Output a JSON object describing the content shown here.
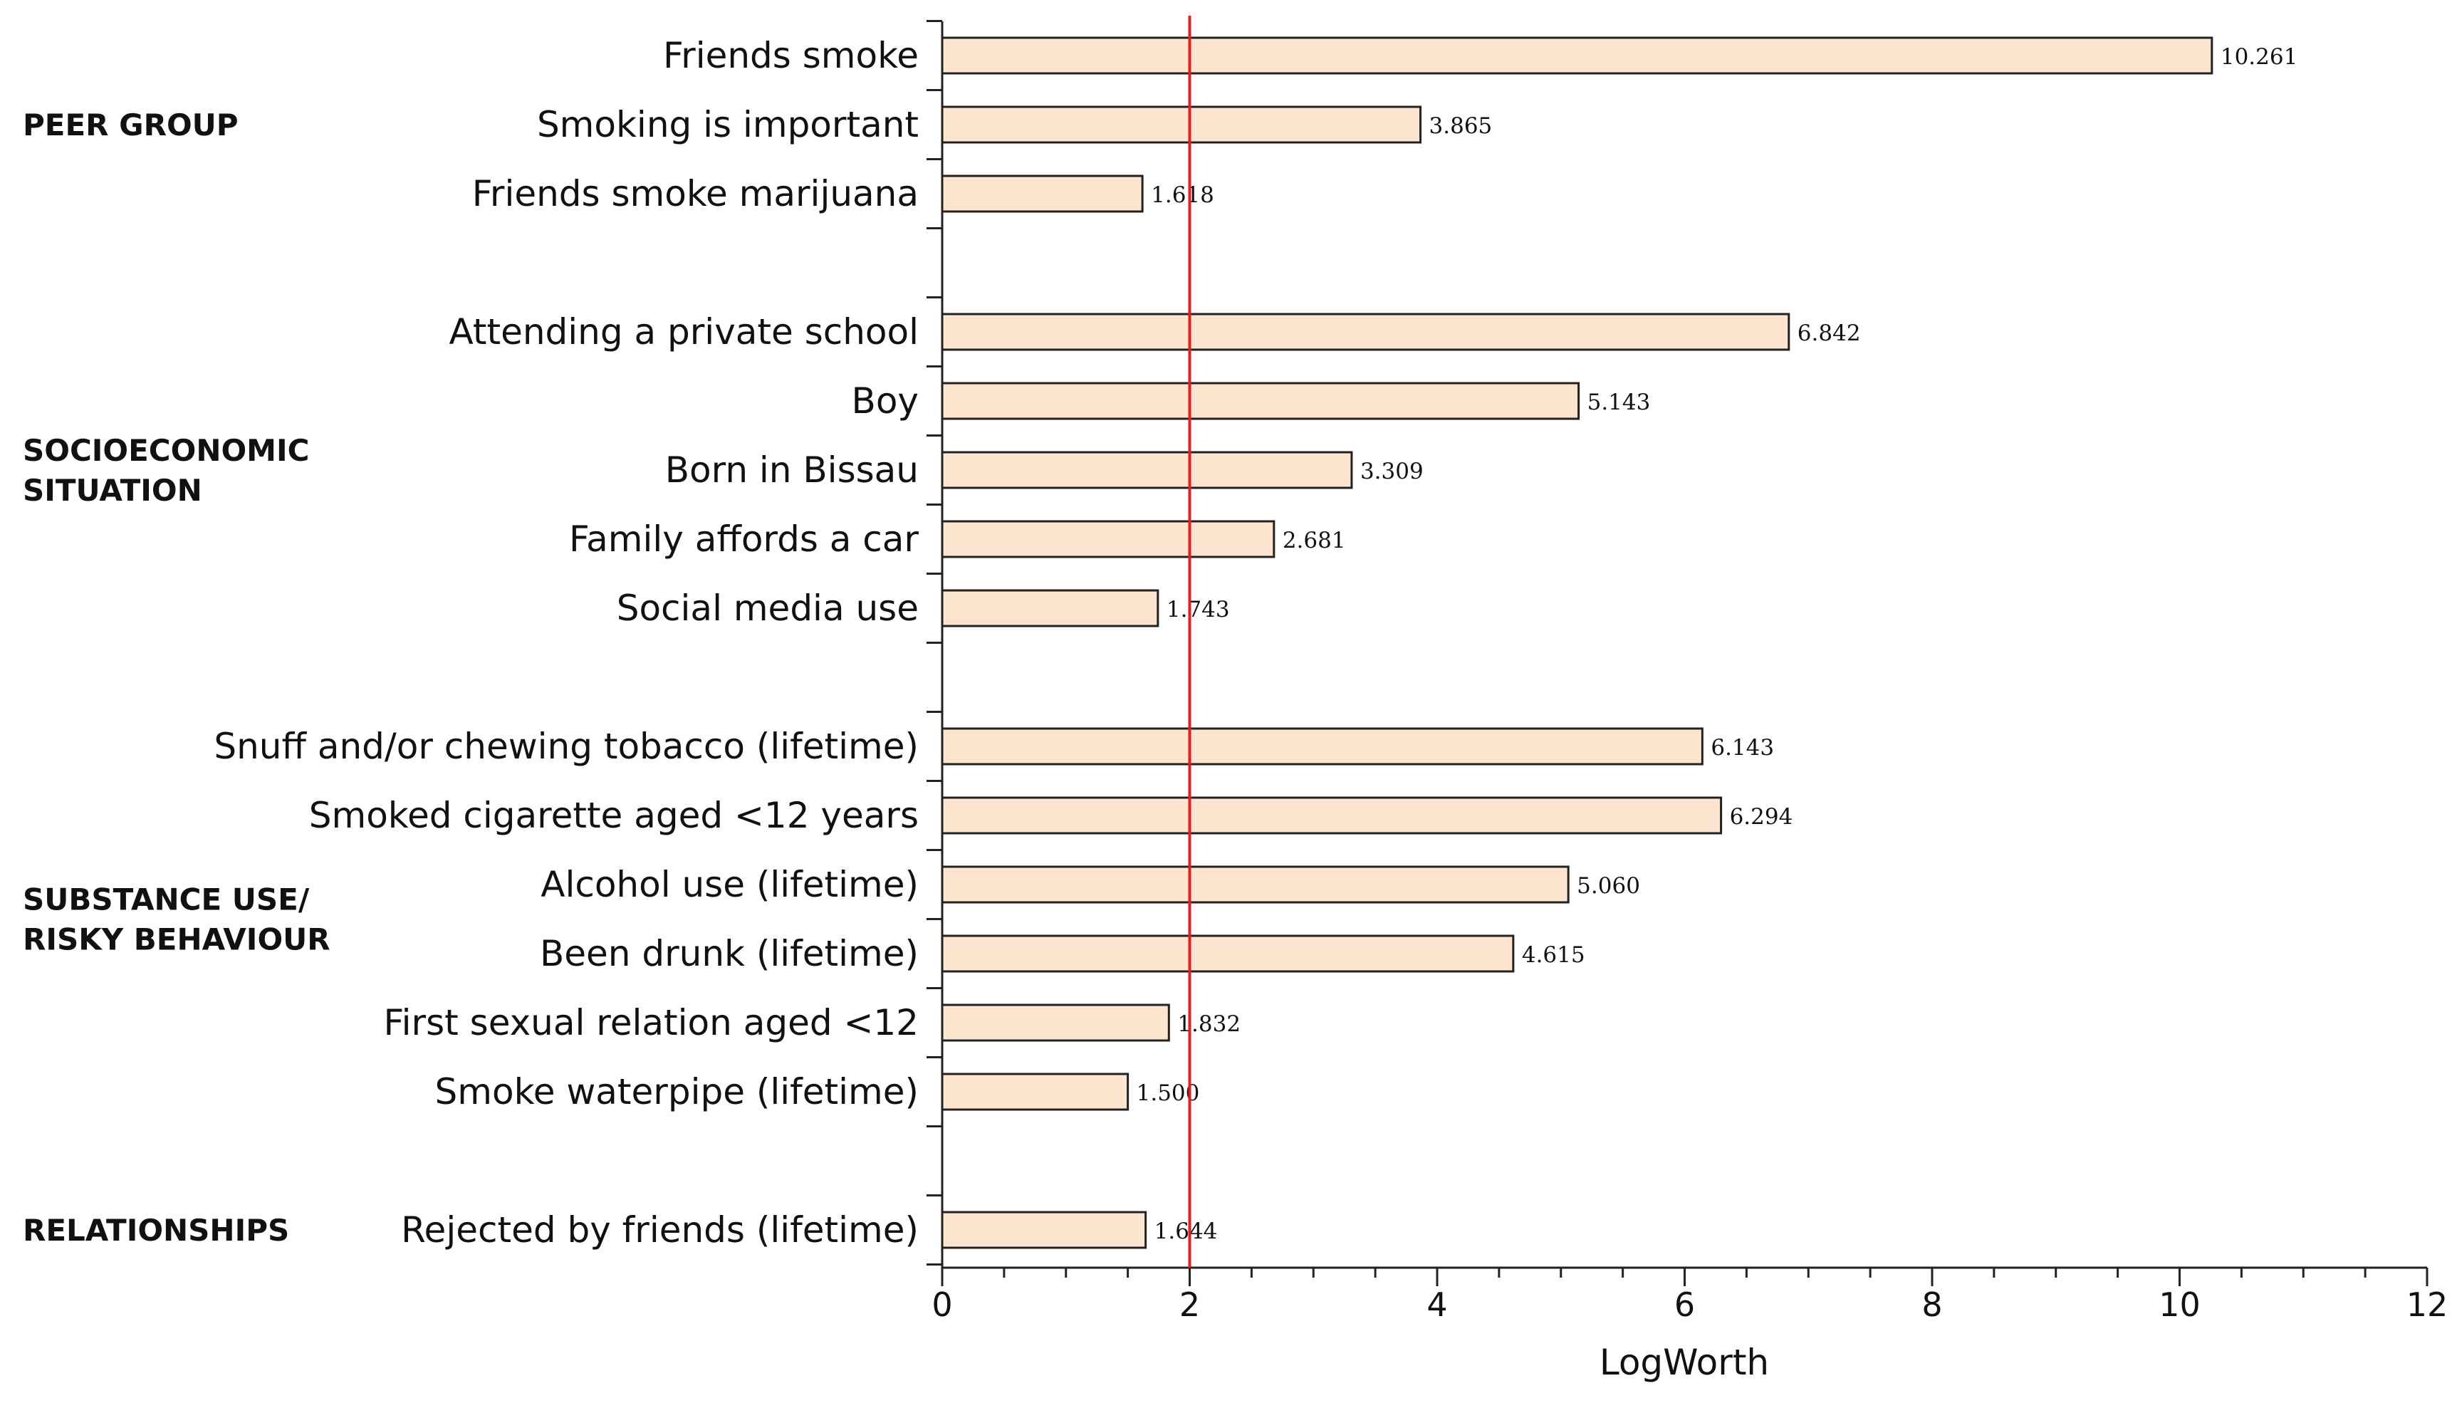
{
  "chart_data": {
    "type": "bar",
    "orientation": "horizontal",
    "xlabel": "LogWorth",
    "xlim": [
      0,
      12
    ],
    "xticks": [
      "0",
      "2",
      "4",
      "6",
      "8",
      "10",
      "12"
    ],
    "reference_line": 2,
    "colors": {
      "bar_fill": "#fde5d0",
      "bar_edge": "#222222",
      "reference_line": "#e02020"
    },
    "rows": [
      {
        "label": "Friends smoke",
        "value": 10.261,
        "value_label": "10.261"
      },
      {
        "label": "Smoking is important",
        "value": 3.865,
        "value_label": "3.865"
      },
      {
        "label": "Friends smoke marijuana",
        "value": 1.618,
        "value_label": "1.618"
      },
      {
        "label": "",
        "value": null,
        "value_label": ""
      },
      {
        "label": "Attending a private school",
        "value": 6.842,
        "value_label": "6.842"
      },
      {
        "label": "Boy",
        "value": 5.143,
        "value_label": "5.143"
      },
      {
        "label": "Born in Bissau",
        "value": 3.309,
        "value_label": "3.309"
      },
      {
        "label": "Family affords a car",
        "value": 2.681,
        "value_label": "2.681"
      },
      {
        "label": "Social media use",
        "value": 1.743,
        "value_label": "1.743"
      },
      {
        "label": "",
        "value": null,
        "value_label": ""
      },
      {
        "label": "Snuff and/or chewing tobacco (lifetime)",
        "value": 6.143,
        "value_label": "6.143"
      },
      {
        "label": "Smoked cigarette aged <12 years",
        "value": 6.294,
        "value_label": "6.294"
      },
      {
        "label": "Alcohol use (lifetime)",
        "value": 5.06,
        "value_label": "5.060"
      },
      {
        "label": "Been drunk (lifetime)",
        "value": 4.615,
        "value_label": "4.615"
      },
      {
        "label": "First sexual relation aged <12",
        "value": 1.832,
        "value_label": "1.832"
      },
      {
        "label": "Smoke waterpipe (lifetime)",
        "value": 1.5,
        "value_label": "1.500"
      },
      {
        "label": "",
        "value": null,
        "value_label": ""
      },
      {
        "label": "Rejected by friends (lifetime)",
        "value": 1.644,
        "value_label": "1.644"
      }
    ],
    "groups": [
      {
        "lines": [
          "PEER GROUP"
        ],
        "first_row": 0,
        "last_row": 2
      },
      {
        "lines": [
          "SOCIOECONOMIC",
          "SITUATION"
        ],
        "first_row": 4,
        "last_row": 8
      },
      {
        "lines": [
          "SUBSTANCE USE/",
          "RISKY BEHAVIOUR"
        ],
        "first_row": 10,
        "last_row": 15
      },
      {
        "lines": [
          "RELATIONSHIPS"
        ],
        "first_row": 17,
        "last_row": 17
      }
    ]
  }
}
